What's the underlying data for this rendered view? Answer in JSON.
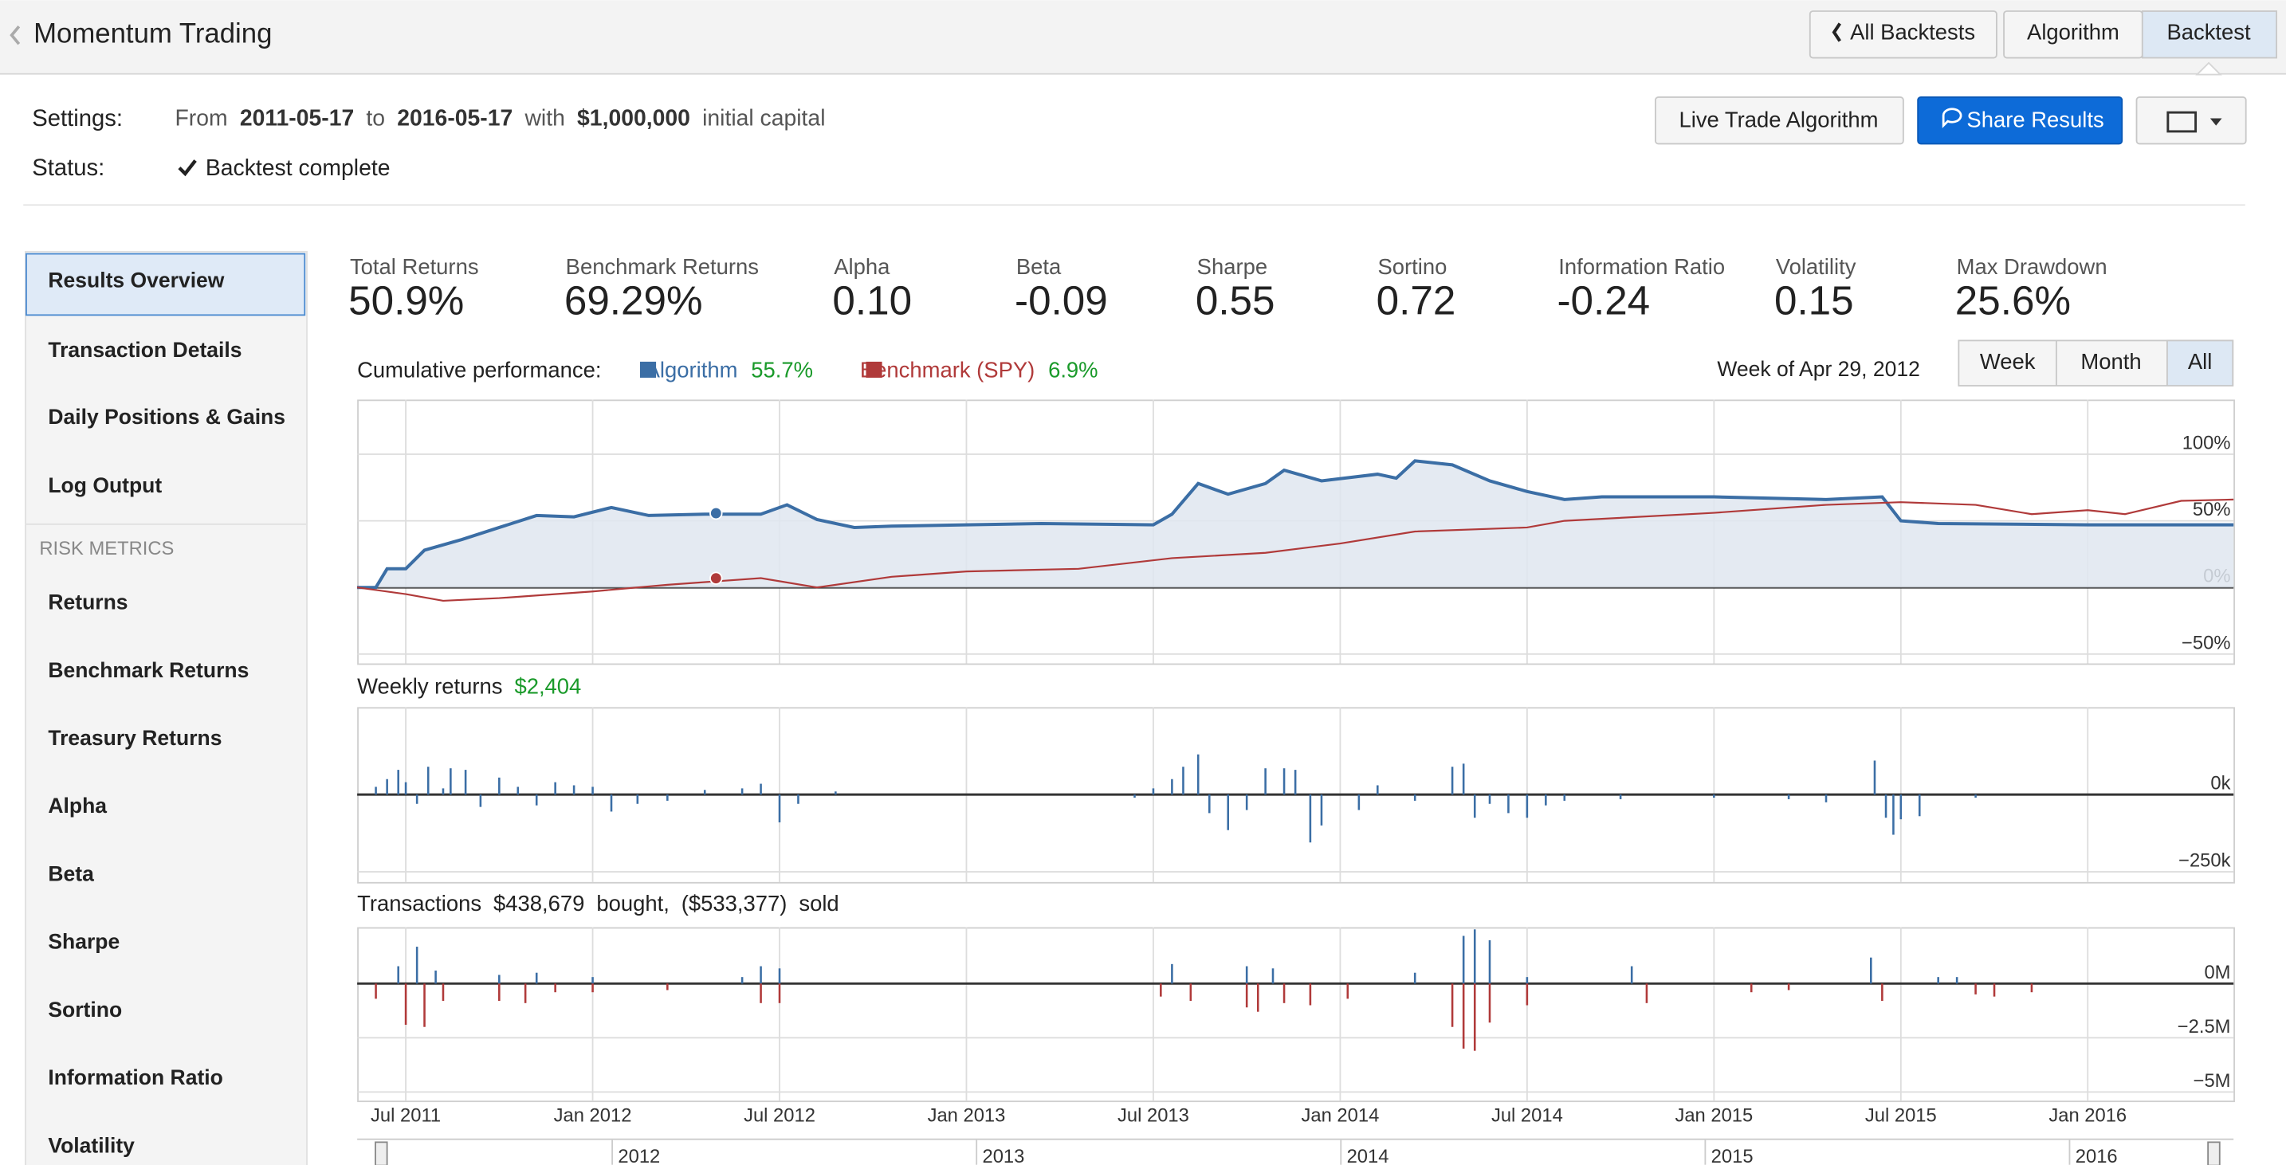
{
  "header": {
    "title": "Momentum Trading",
    "tabs": [
      "All Backtests",
      "Algorithm",
      "Backtest"
    ]
  },
  "settings": {
    "label": "Settings:",
    "from_word": "From",
    "start": "2011-05-17",
    "to_word": "to",
    "end": "2016-05-17",
    "with_word": "with",
    "capital": "$1,000,000",
    "capital_suffix": "initial capital",
    "status_label": "Status:",
    "status": "Backtest complete"
  },
  "actions": [
    "Live Trade Algorithm",
    "Share Results"
  ],
  "sidebar": {
    "items": [
      "Results Overview",
      "Transaction Details",
      "Daily Positions & Gains",
      "Log Output"
    ],
    "section": "RISK METRICS",
    "risk_items": [
      "Returns",
      "Benchmark Returns",
      "Treasury Returns",
      "Alpha",
      "Beta",
      "Sharpe",
      "Sortino",
      "Information Ratio",
      "Volatility"
    ]
  },
  "metrics": [
    {
      "label": "Total Returns",
      "value": "50.9%"
    },
    {
      "label": "Benchmark Returns",
      "value": "69.29%"
    },
    {
      "label": "Alpha",
      "value": "0.10"
    },
    {
      "label": "Beta",
      "value": "-0.09"
    },
    {
      "label": "Sharpe",
      "value": "0.55"
    },
    {
      "label": "Sortino",
      "value": "0.72"
    },
    {
      "label": "Information Ratio",
      "value": "-0.24"
    },
    {
      "label": "Volatility",
      "value": "0.15"
    },
    {
      "label": "Max Drawdown",
      "value": "25.6%"
    }
  ],
  "range_buttons": [
    "Week",
    "Month",
    "All"
  ],
  "chart_data": [
    {
      "type": "line",
      "title": "Cumulative performance:",
      "highlight": {
        "label": "Week of Apr 29, 2012",
        "x": 2012.33
      },
      "xlim": [
        2011.37,
        2016.39
      ],
      "ylim": [
        -57,
        141
      ],
      "yticks": [
        {
          "value": 100,
          "label": "100%"
        },
        {
          "value": 50,
          "label": "50%"
        },
        {
          "value": 0,
          "label": "0%"
        },
        {
          "value": -50,
          "label": "−50%"
        }
      ],
      "grid": true,
      "series": [
        {
          "name": "Algorithm",
          "color": "#3b6ea5",
          "highlight_value": 55.7,
          "highlight_label": "55.7%",
          "x": [
            2011.37,
            2011.42,
            2011.45,
            2011.5,
            2011.55,
            2011.65,
            2011.75,
            2011.85,
            2011.95,
            2012.05,
            2012.15,
            2012.3,
            2012.45,
            2012.52,
            2012.6,
            2012.7,
            2012.8,
            2013.0,
            2013.2,
            2013.5,
            2013.55,
            2013.62,
            2013.7,
            2013.8,
            2013.85,
            2013.95,
            2014.1,
            2014.15,
            2014.2,
            2014.3,
            2014.4,
            2014.5,
            2014.6,
            2014.7,
            2015.0,
            2015.3,
            2015.45,
            2015.5,
            2015.6,
            2016.0,
            2016.39
          ],
          "values": [
            0,
            0,
            14,
            14,
            28,
            36,
            45,
            54,
            53,
            60,
            54,
            55,
            55,
            62,
            51,
            45,
            46,
            47,
            48,
            47,
            55,
            78,
            70,
            78,
            88,
            80,
            85,
            82,
            95,
            92,
            80,
            72,
            66,
            68,
            68,
            66,
            68,
            50,
            48,
            47,
            47
          ]
        },
        {
          "name": "Benchmark (SPY)",
          "color": "#b03a3a",
          "highlight_value": 6.9,
          "highlight_label": "6.9%",
          "x": [
            2011.37,
            2011.5,
            2011.6,
            2011.75,
            2012.0,
            2012.2,
            2012.45,
            2012.6,
            2012.8,
            2013.0,
            2013.3,
            2013.55,
            2013.8,
            2014.0,
            2014.2,
            2014.5,
            2014.6,
            2015.0,
            2015.3,
            2015.5,
            2015.7,
            2015.85,
            2016.0,
            2016.1,
            2016.25,
            2016.39
          ],
          "values": [
            0,
            -5,
            -10,
            -8,
            -3,
            2,
            7,
            0,
            8,
            12,
            14,
            22,
            26,
            33,
            42,
            45,
            50,
            56,
            62,
            64,
            62,
            55,
            58,
            55,
            65,
            66
          ]
        }
      ]
    },
    {
      "type": "bar",
      "title": "Weekly returns",
      "subtitle": "$2,404",
      "xlim": [
        2011.37,
        2016.39
      ],
      "ylim": [
        -283000,
        283000
      ],
      "yticks": [
        {
          "value": 0,
          "label": "0k"
        },
        {
          "value": -250000,
          "label": "−250k"
        }
      ],
      "series": [
        {
          "name": "Weekly returns",
          "color": "#3b6ea5",
          "x": [
            2011.42,
            2011.45,
            2011.48,
            2011.5,
            2011.53,
            2011.56,
            2011.6,
            2011.62,
            2011.66,
            2011.7,
            2011.75,
            2011.8,
            2011.85,
            2011.9,
            2011.95,
            2012.0,
            2012.05,
            2012.12,
            2012.2,
            2012.3,
            2012.4,
            2012.45,
            2012.5,
            2012.55,
            2012.65,
            2013.45,
            2013.5,
            2013.55,
            2013.58,
            2013.62,
            2013.65,
            2013.7,
            2013.75,
            2013.8,
            2013.85,
            2013.88,
            2013.92,
            2013.95,
            2014.05,
            2014.1,
            2014.2,
            2014.3,
            2014.33,
            2014.36,
            2014.4,
            2014.45,
            2014.5,
            2014.55,
            2014.6,
            2014.75,
            2015.0,
            2015.2,
            2015.3,
            2015.43,
            2015.46,
            2015.48,
            2015.5,
            2015.55,
            2015.7
          ],
          "values": [
            25000,
            50000,
            80000,
            40000,
            -30000,
            90000,
            20000,
            85000,
            80000,
            -40000,
            55000,
            25000,
            -35000,
            40000,
            30000,
            25000,
            -55000,
            -30000,
            -20000,
            15000,
            20000,
            35000,
            -90000,
            -30000,
            10000,
            -10000,
            20000,
            50000,
            90000,
            130000,
            -60000,
            -115000,
            -50000,
            85000,
            85000,
            80000,
            -155000,
            -100000,
            -50000,
            30000,
            -20000,
            90000,
            100000,
            -75000,
            -30000,
            -60000,
            -75000,
            -35000,
            -20000,
            -15000,
            -10000,
            -15000,
            -25000,
            110000,
            -75000,
            -130000,
            -80000,
            -70000,
            -10000
          ]
        }
      ]
    },
    {
      "type": "bar",
      "title": "Transactions",
      "bought": "$438,679",
      "bought_word": "bought,",
      "sold": "($533,377)",
      "sold_word": "sold",
      "xlim": [
        2011.37,
        2016.39
      ],
      "ylim": [
        -5400000,
        2600000
      ],
      "yticks": [
        {
          "value": 0,
          "label": "0M"
        },
        {
          "value": -2500000,
          "label": "−2.5M"
        },
        {
          "value": -5000000,
          "label": "−5M"
        }
      ],
      "xticks": [
        {
          "value": 2011.5,
          "label": "Jul 2011"
        },
        {
          "value": 2012.0,
          "label": "Jan 2012"
        },
        {
          "value": 2012.5,
          "label": "Jul 2012"
        },
        {
          "value": 2013.0,
          "label": "Jan 2013"
        },
        {
          "value": 2013.5,
          "label": "Jul 2013"
        },
        {
          "value": 2014.0,
          "label": "Jan 2014"
        },
        {
          "value": 2014.5,
          "label": "Jul 2014"
        },
        {
          "value": 2015.0,
          "label": "Jan 2015"
        },
        {
          "value": 2015.5,
          "label": "Jul 2015"
        },
        {
          "value": 2016.0,
          "label": "Jan 2016"
        }
      ],
      "nav_xlim": [
        2011.3,
        2016.45
      ],
      "nav_ticks": [
        2012,
        2013,
        2014,
        2015,
        2016
      ],
      "series": [
        {
          "name": "Bought",
          "color": "#3b6ea5",
          "x": [
            2011.48,
            2011.53,
            2011.58,
            2011.75,
            2011.85,
            2012.0,
            2012.4,
            2012.45,
            2012.5,
            2013.55,
            2013.75,
            2013.82,
            2014.2,
            2014.33,
            2014.36,
            2014.4,
            2014.5,
            2014.78,
            2015.42,
            2015.6,
            2015.65
          ],
          "values": [
            800000,
            1700000,
            600000,
            400000,
            500000,
            300000,
            300000,
            800000,
            700000,
            900000,
            800000,
            700000,
            500000,
            2200000,
            2500000,
            2000000,
            300000,
            800000,
            1200000,
            300000,
            300000
          ]
        },
        {
          "name": "Sold",
          "color": "#b03a3a",
          "x": [
            2011.42,
            2011.5,
            2011.55,
            2011.6,
            2011.75,
            2011.82,
            2011.9,
            2012.0,
            2012.2,
            2012.45,
            2012.5,
            2013.52,
            2013.6,
            2013.75,
            2013.78,
            2013.85,
            2013.92,
            2014.02,
            2014.3,
            2014.33,
            2014.36,
            2014.4,
            2014.5,
            2014.82,
            2015.1,
            2015.2,
            2015.45,
            2015.7,
            2015.75,
            2015.85
          ],
          "values": [
            -700000,
            -1900000,
            -2000000,
            -800000,
            -800000,
            -900000,
            -400000,
            -400000,
            -300000,
            -900000,
            -900000,
            -600000,
            -800000,
            -1100000,
            -1300000,
            -900000,
            -1000000,
            -700000,
            -2000000,
            -3000000,
            -3100000,
            -1800000,
            -1000000,
            -900000,
            -400000,
            -300000,
            -800000,
            -500000,
            -600000,
            -400000
          ]
        }
      ]
    }
  ]
}
